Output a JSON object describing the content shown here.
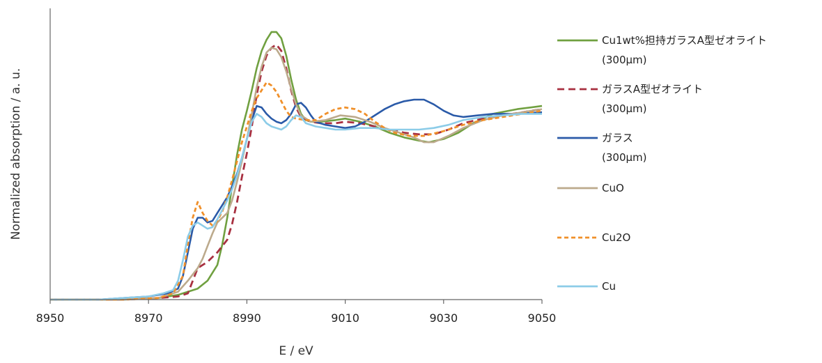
{
  "chart_data": {
    "type": "line",
    "title": "",
    "xlabel": "E / eV",
    "ylabel": "Normalized absorption / a. u.",
    "xlim": [
      8950,
      9050
    ],
    "ylim": [
      0,
      1.85
    ],
    "x_ticks": [
      8950,
      8970,
      8990,
      9010,
      9030,
      9050
    ],
    "y_tick_labels_shown": false,
    "grid": false,
    "legend_position": "right",
    "series": [
      {
        "name": "Cu1wt%担持ガラスA型ゼオライト",
        "name_line2": "(300μm)",
        "color": "#70a040",
        "dash": "solid",
        "points": [
          [
            8950,
            0
          ],
          [
            8965,
            0
          ],
          [
            8972,
            0.01
          ],
          [
            8976,
            0.03
          ],
          [
            8980,
            0.07
          ],
          [
            8982,
            0.12
          ],
          [
            8984,
            0.22
          ],
          [
            8985,
            0.35
          ],
          [
            8986,
            0.52
          ],
          [
            8987,
            0.72
          ],
          [
            8988,
            0.92
          ],
          [
            8989,
            1.08
          ],
          [
            8990,
            1.2
          ],
          [
            8991,
            1.33
          ],
          [
            8992,
            1.47
          ],
          [
            8993,
            1.58
          ],
          [
            8994,
            1.65
          ],
          [
            8995,
            1.7
          ],
          [
            8996,
            1.7
          ],
          [
            8997,
            1.66
          ],
          [
            8998,
            1.55
          ],
          [
            8999,
            1.4
          ],
          [
            9000,
            1.27
          ],
          [
            9001,
            1.18
          ],
          [
            9002,
            1.14
          ],
          [
            9003,
            1.13
          ],
          [
            9005,
            1.13
          ],
          [
            9008,
            1.14
          ],
          [
            9010,
            1.15
          ],
          [
            9013,
            1.13
          ],
          [
            9016,
            1.1
          ],
          [
            9019,
            1.06
          ],
          [
            9022,
            1.03
          ],
          [
            9025,
            1.01
          ],
          [
            9027,
            1.0
          ],
          [
            9030,
            1.02
          ],
          [
            9033,
            1.06
          ],
          [
            9036,
            1.12
          ],
          [
            9040,
            1.18
          ],
          [
            9045,
            1.21
          ],
          [
            9050,
            1.23
          ]
        ]
      },
      {
        "name": "ガラスA型ゼオライト",
        "name_line2": "(300μm)",
        "color": "#a83040",
        "dash": "10,6",
        "points": [
          [
            8950,
            0
          ],
          [
            8965,
            0
          ],
          [
            8972,
            0.01
          ],
          [
            8976,
            0.02
          ],
          [
            8978,
            0.04
          ],
          [
            8980,
            0.2
          ],
          [
            8982,
            0.24
          ],
          [
            8984,
            0.3
          ],
          [
            8986,
            0.38
          ],
          [
            8987,
            0.48
          ],
          [
            8988,
            0.62
          ],
          [
            8989,
            0.78
          ],
          [
            8990,
            0.93
          ],
          [
            8991,
            1.1
          ],
          [
            8992,
            1.3
          ],
          [
            8993,
            1.45
          ],
          [
            8994,
            1.55
          ],
          [
            8995,
            1.6
          ],
          [
            8996,
            1.62
          ],
          [
            8997,
            1.58
          ],
          [
            8998,
            1.47
          ],
          [
            8999,
            1.33
          ],
          [
            9000,
            1.22
          ],
          [
            9001,
            1.16
          ],
          [
            9003,
            1.13
          ],
          [
            9005,
            1.12
          ],
          [
            9008,
            1.12
          ],
          [
            9010,
            1.13
          ],
          [
            9013,
            1.12
          ],
          [
            9016,
            1.1
          ],
          [
            9019,
            1.08
          ],
          [
            9022,
            1.06
          ],
          [
            9025,
            1.05
          ],
          [
            9028,
            1.05
          ],
          [
            9031,
            1.08
          ],
          [
            9034,
            1.12
          ],
          [
            9038,
            1.15
          ],
          [
            9042,
            1.17
          ],
          [
            9046,
            1.19
          ],
          [
            9050,
            1.21
          ]
        ]
      },
      {
        "name": "ガラス",
        "name_line2": "(300μm)",
        "color": "#2a5aa8",
        "dash": "solid",
        "points": [
          [
            8950,
            0
          ],
          [
            8960,
            0.0
          ],
          [
            8965,
            0.01
          ],
          [
            8970,
            0.02
          ],
          [
            8974,
            0.04
          ],
          [
            8976,
            0.07
          ],
          [
            8977,
            0.15
          ],
          [
            8978,
            0.3
          ],
          [
            8979,
            0.45
          ],
          [
            8980,
            0.52
          ],
          [
            8981,
            0.52
          ],
          [
            8982,
            0.49
          ],
          [
            8983,
            0.5
          ],
          [
            8984,
            0.55
          ],
          [
            8985,
            0.6
          ],
          [
            8986,
            0.65
          ],
          [
            8987,
            0.72
          ],
          [
            8988,
            0.8
          ],
          [
            8989,
            0.9
          ],
          [
            8990,
            1.02
          ],
          [
            8991,
            1.14
          ],
          [
            8992,
            1.23
          ],
          [
            8993,
            1.22
          ],
          [
            8994,
            1.18
          ],
          [
            8995,
            1.15
          ],
          [
            8996,
            1.13
          ],
          [
            8997,
            1.12
          ],
          [
            8998,
            1.14
          ],
          [
            8999,
            1.18
          ],
          [
            9000,
            1.24
          ],
          [
            9001,
            1.25
          ],
          [
            9002,
            1.22
          ],
          [
            9003,
            1.17
          ],
          [
            9004,
            1.13
          ],
          [
            9006,
            1.11
          ],
          [
            9008,
            1.1
          ],
          [
            9010,
            1.09
          ],
          [
            9012,
            1.1
          ],
          [
            9014,
            1.13
          ],
          [
            9016,
            1.17
          ],
          [
            9018,
            1.21
          ],
          [
            9020,
            1.24
          ],
          [
            9022,
            1.26
          ],
          [
            9024,
            1.27
          ],
          [
            9026,
            1.27
          ],
          [
            9028,
            1.24
          ],
          [
            9030,
            1.2
          ],
          [
            9032,
            1.17
          ],
          [
            9034,
            1.16
          ],
          [
            9037,
            1.17
          ],
          [
            9040,
            1.18
          ],
          [
            9045,
            1.18
          ],
          [
            9050,
            1.19
          ]
        ]
      },
      {
        "name": "CuO",
        "name_line2": "",
        "color": "#bcaa8c",
        "dash": "solid",
        "points": [
          [
            8950,
            0
          ],
          [
            8965,
            0
          ],
          [
            8972,
            0.01
          ],
          [
            8976,
            0.05
          ],
          [
            8978,
            0.12
          ],
          [
            8980,
            0.2
          ],
          [
            8981,
            0.26
          ],
          [
            8982,
            0.34
          ],
          [
            8983,
            0.42
          ],
          [
            8984,
            0.49
          ],
          [
            8985,
            0.52
          ],
          [
            8986,
            0.55
          ],
          [
            8987,
            0.63
          ],
          [
            8988,
            0.75
          ],
          [
            8989,
            0.88
          ],
          [
            8990,
            1.02
          ],
          [
            8991,
            1.18
          ],
          [
            8992,
            1.35
          ],
          [
            8993,
            1.48
          ],
          [
            8994,
            1.57
          ],
          [
            8995,
            1.6
          ],
          [
            8996,
            1.59
          ],
          [
            8997,
            1.54
          ],
          [
            8998,
            1.45
          ],
          [
            8999,
            1.34
          ],
          [
            9000,
            1.24
          ],
          [
            9001,
            1.17
          ],
          [
            9003,
            1.13
          ],
          [
            9006,
            1.14
          ],
          [
            9009,
            1.17
          ],
          [
            9012,
            1.16
          ],
          [
            9015,
            1.13
          ],
          [
            9018,
            1.09
          ],
          [
            9021,
            1.06
          ],
          [
            9024,
            1.03
          ],
          [
            9026,
            1.0
          ],
          [
            9028,
            1.0
          ],
          [
            9031,
            1.04
          ],
          [
            9034,
            1.09
          ],
          [
            9038,
            1.14
          ],
          [
            9042,
            1.17
          ],
          [
            9046,
            1.19
          ],
          [
            9050,
            1.21
          ]
        ]
      },
      {
        "name": "Cu2O",
        "name_line2": "",
        "color": "#f0902a",
        "dash": "6,4",
        "points": [
          [
            8950,
            0
          ],
          [
            8965,
            0
          ],
          [
            8972,
            0.01
          ],
          [
            8975,
            0.04
          ],
          [
            8977,
            0.15
          ],
          [
            8978,
            0.35
          ],
          [
            8979,
            0.52
          ],
          [
            8980,
            0.62
          ],
          [
            8981,
            0.55
          ],
          [
            8982,
            0.5
          ],
          [
            8983,
            0.47
          ],
          [
            8984,
            0.5
          ],
          [
            8985,
            0.56
          ],
          [
            8986,
            0.65
          ],
          [
            8987,
            0.76
          ],
          [
            8988,
            0.88
          ],
          [
            8989,
            1.0
          ],
          [
            8990,
            1.1
          ],
          [
            8991,
            1.2
          ],
          [
            8992,
            1.28
          ],
          [
            8993,
            1.33
          ],
          [
            8994,
            1.38
          ],
          [
            8995,
            1.36
          ],
          [
            8996,
            1.32
          ],
          [
            8997,
            1.26
          ],
          [
            8998,
            1.2
          ],
          [
            8999,
            1.16
          ],
          [
            9000,
            1.15
          ],
          [
            9002,
            1.14
          ],
          [
            9004,
            1.14
          ],
          [
            9006,
            1.18
          ],
          [
            9008,
            1.21
          ],
          [
            9010,
            1.22
          ],
          [
            9012,
            1.21
          ],
          [
            9014,
            1.18
          ],
          [
            9016,
            1.13
          ],
          [
            9018,
            1.09
          ],
          [
            9020,
            1.06
          ],
          [
            9023,
            1.04
          ],
          [
            9026,
            1.04
          ],
          [
            9030,
            1.07
          ],
          [
            9034,
            1.11
          ],
          [
            9038,
            1.14
          ],
          [
            9042,
            1.16
          ],
          [
            9046,
            1.18
          ],
          [
            9050,
            1.2
          ]
        ]
      },
      {
        "name": "Cu",
        "name_line2": "",
        "color": "#8ccce8",
        "dash": "solid",
        "points": [
          [
            8950,
            0
          ],
          [
            8960,
            0.0
          ],
          [
            8965,
            0.01
          ],
          [
            8970,
            0.02
          ],
          [
            8973,
            0.04
          ],
          [
            8975,
            0.06
          ],
          [
            8976,
            0.12
          ],
          [
            8977,
            0.25
          ],
          [
            8978,
            0.4
          ],
          [
            8979,
            0.47
          ],
          [
            8980,
            0.49
          ],
          [
            8981,
            0.47
          ],
          [
            8982,
            0.45
          ],
          [
            8983,
            0.46
          ],
          [
            8984,
            0.51
          ],
          [
            8985,
            0.57
          ],
          [
            8986,
            0.63
          ],
          [
            8987,
            0.7
          ],
          [
            8988,
            0.79
          ],
          [
            8989,
            0.9
          ],
          [
            8990,
            1.02
          ],
          [
            8991,
            1.13
          ],
          [
            8992,
            1.18
          ],
          [
            8993,
            1.16
          ],
          [
            8994,
            1.12
          ],
          [
            8995,
            1.1
          ],
          [
            8996,
            1.09
          ],
          [
            8997,
            1.08
          ],
          [
            8998,
            1.1
          ],
          [
            8999,
            1.14
          ],
          [
            9000,
            1.17
          ],
          [
            9001,
            1.16
          ],
          [
            9002,
            1.12
          ],
          [
            9004,
            1.1
          ],
          [
            9006,
            1.09
          ],
          [
            9008,
            1.08
          ],
          [
            9010,
            1.08
          ],
          [
            9013,
            1.09
          ],
          [
            9016,
            1.09
          ],
          [
            9019,
            1.08
          ],
          [
            9022,
            1.08
          ],
          [
            9025,
            1.08
          ],
          [
            9028,
            1.09
          ],
          [
            9031,
            1.11
          ],
          [
            9034,
            1.14
          ],
          [
            9038,
            1.16
          ],
          [
            9042,
            1.17
          ],
          [
            9046,
            1.18
          ],
          [
            9050,
            1.18
          ]
        ]
      }
    ]
  }
}
